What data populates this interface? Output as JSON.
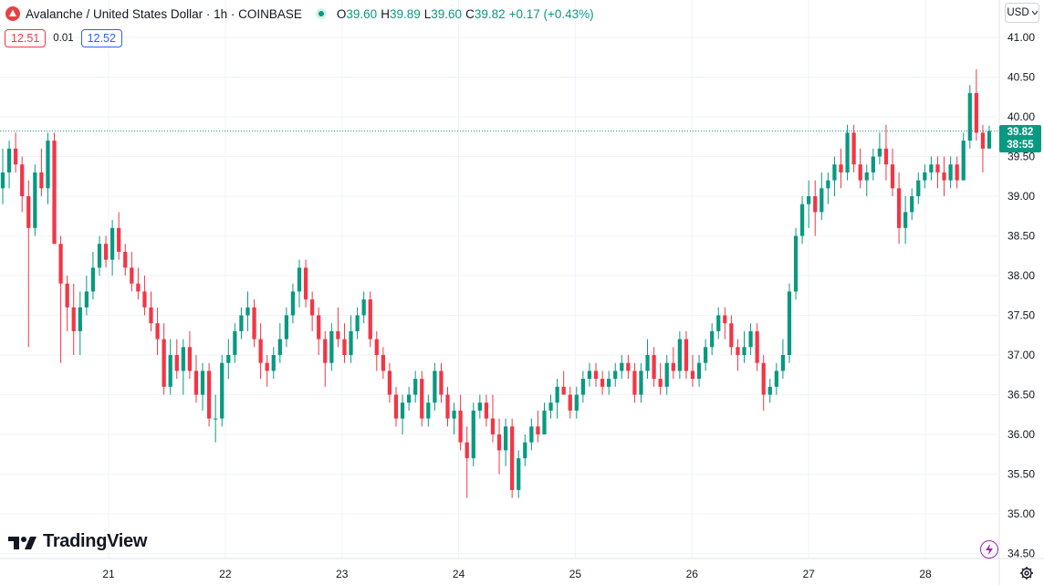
{
  "legend": {
    "symbol_title": "Avalanche / United States Dollar · 1h · COINBASE",
    "o_label": "O",
    "o_value": "39.60",
    "h_label": "H",
    "h_value": "39.89",
    "l_label": "L",
    "l_value": "39.60",
    "c_label": "C",
    "c_value": "39.82",
    "change": "+0.17 (+0.43%)"
  },
  "spread": {
    "sell": "12.51",
    "spread": "0.01",
    "buy": "12.52"
  },
  "currency": {
    "label": "USD"
  },
  "last_price": {
    "price": "39.82",
    "countdown": "38:55"
  },
  "watermark": {
    "brand": "TradingView"
  },
  "icons": {
    "symbol": "avalanche-logo-icon",
    "market_status": "market-open-dot-icon",
    "alerts": "lightning-icon",
    "settings": "gear-icon",
    "dropdown": "chevron-down-icon"
  },
  "colors": {
    "up": "#089981",
    "down": "#f23645",
    "accent": "#2962ff"
  },
  "chart_data": {
    "type": "candlestick",
    "title": "Avalanche / United States Dollar · 1h · COINBASE",
    "ylim": [
      34.35,
      41.22
    ],
    "y_ticks": [
      "41.00",
      "40.50",
      "40.00",
      "39.50",
      "39.00",
      "38.50",
      "38.00",
      "37.50",
      "37.00",
      "36.50",
      "36.00",
      "35.50",
      "35.00",
      "34.50"
    ],
    "x_ticks": [
      "21",
      "22",
      "23",
      "24",
      "25",
      "26",
      "27",
      "28"
    ],
    "last_price": 39.82,
    "grid": true,
    "candles": [
      [
        39.1,
        39.6,
        38.9,
        39.3
      ],
      [
        39.3,
        39.7,
        39.1,
        39.6
      ],
      [
        39.6,
        39.8,
        39.3,
        39.4
      ],
      [
        39.4,
        39.5,
        38.8,
        39.0
      ],
      [
        39.0,
        39.2,
        37.1,
        38.6
      ],
      [
        38.6,
        39.4,
        38.5,
        39.3
      ],
      [
        39.3,
        39.6,
        39.0,
        39.1
      ],
      [
        39.1,
        39.8,
        38.9,
        39.7
      ],
      [
        39.7,
        39.8,
        38.4,
        38.4
      ],
      [
        38.4,
        38.5,
        36.9,
        37.9
      ],
      [
        37.9,
        38.0,
        37.3,
        37.6
      ],
      [
        37.6,
        37.9,
        37.0,
        37.3
      ],
      [
        37.3,
        37.8,
        37.0,
        37.6
      ],
      [
        37.6,
        38.0,
        37.5,
        37.8
      ],
      [
        37.8,
        38.3,
        37.7,
        38.1
      ],
      [
        38.1,
        38.5,
        38.0,
        38.4
      ],
      [
        38.4,
        38.5,
        38.1,
        38.2
      ],
      [
        38.2,
        38.7,
        38.0,
        38.6
      ],
      [
        38.6,
        38.8,
        38.2,
        38.3
      ],
      [
        38.3,
        38.4,
        38.0,
        38.1
      ],
      [
        38.1,
        38.3,
        37.8,
        37.9
      ],
      [
        37.9,
        38.1,
        37.7,
        37.8
      ],
      [
        37.8,
        38.0,
        37.5,
        37.6
      ],
      [
        37.6,
        37.8,
        37.3,
        37.4
      ],
      [
        37.4,
        37.6,
        37.0,
        37.2
      ],
      [
        37.2,
        37.4,
        36.5,
        36.6
      ],
      [
        36.6,
        37.2,
        36.5,
        37.0
      ],
      [
        37.0,
        37.2,
        36.7,
        36.8
      ],
      [
        36.8,
        37.2,
        36.5,
        37.1
      ],
      [
        37.1,
        37.3,
        36.7,
        36.8
      ],
      [
        36.8,
        37.0,
        36.4,
        36.5
      ],
      [
        36.5,
        36.9,
        36.3,
        36.8
      ],
      [
        36.8,
        36.9,
        36.1,
        36.2
      ],
      [
        36.2,
        36.5,
        35.9,
        36.2
      ],
      [
        36.2,
        37.0,
        36.1,
        36.9
      ],
      [
        36.9,
        37.2,
        36.7,
        37.0
      ],
      [
        37.0,
        37.4,
        36.9,
        37.3
      ],
      [
        37.3,
        37.6,
        37.2,
        37.5
      ],
      [
        37.5,
        37.8,
        37.3,
        37.6
      ],
      [
        37.6,
        37.7,
        37.1,
        37.2
      ],
      [
        37.2,
        37.4,
        36.7,
        36.9
      ],
      [
        36.9,
        37.0,
        36.6,
        36.8
      ],
      [
        36.8,
        37.1,
        36.7,
        37.0
      ],
      [
        37.0,
        37.4,
        36.9,
        37.2
      ],
      [
        37.2,
        37.6,
        37.1,
        37.5
      ],
      [
        37.5,
        37.9,
        37.4,
        37.8
      ],
      [
        37.8,
        38.2,
        37.6,
        38.1
      ],
      [
        38.1,
        38.2,
        37.6,
        37.7
      ],
      [
        37.7,
        37.8,
        37.3,
        37.5
      ],
      [
        37.5,
        37.6,
        37.0,
        37.2
      ],
      [
        37.2,
        37.3,
        36.6,
        36.9
      ],
      [
        36.9,
        37.4,
        36.8,
        37.3
      ],
      [
        37.3,
        37.6,
        37.1,
        37.2
      ],
      [
        37.2,
        37.4,
        36.9,
        37.0
      ],
      [
        37.0,
        37.5,
        36.9,
        37.3
      ],
      [
        37.3,
        37.6,
        37.2,
        37.5
      ],
      [
        37.5,
        37.8,
        37.4,
        37.7
      ],
      [
        37.7,
        37.8,
        37.1,
        37.2
      ],
      [
        37.2,
        37.3,
        36.8,
        37.0
      ],
      [
        37.0,
        37.1,
        36.7,
        36.8
      ],
      [
        36.8,
        36.9,
        36.4,
        36.5
      ],
      [
        36.5,
        36.6,
        36.1,
        36.2
      ],
      [
        36.2,
        36.5,
        36.0,
        36.4
      ],
      [
        36.4,
        36.6,
        36.3,
        36.5
      ],
      [
        36.5,
        36.8,
        36.4,
        36.7
      ],
      [
        36.7,
        36.8,
        36.1,
        36.2
      ],
      [
        36.2,
        36.5,
        36.1,
        36.4
      ],
      [
        36.4,
        36.9,
        36.3,
        36.8
      ],
      [
        36.8,
        36.9,
        36.4,
        36.5
      ],
      [
        36.5,
        36.6,
        36.1,
        36.2
      ],
      [
        36.2,
        36.4,
        36.0,
        36.3
      ],
      [
        36.3,
        36.5,
        35.8,
        35.9
      ],
      [
        35.9,
        36.1,
        35.2,
        35.7
      ],
      [
        35.7,
        36.4,
        35.6,
        36.3
      ],
      [
        36.3,
        36.5,
        36.2,
        36.4
      ],
      [
        36.4,
        36.5,
        36.1,
        36.2
      ],
      [
        36.2,
        36.5,
        35.9,
        36.0
      ],
      [
        36.0,
        36.2,
        35.5,
        35.8
      ],
      [
        35.8,
        36.2,
        35.6,
        36.1
      ],
      [
        36.1,
        36.2,
        35.2,
        35.3
      ],
      [
        35.3,
        35.8,
        35.2,
        35.7
      ],
      [
        35.7,
        36.0,
        35.6,
        35.9
      ],
      [
        35.9,
        36.2,
        35.8,
        36.1
      ],
      [
        36.1,
        36.3,
        35.9,
        36.0
      ],
      [
        36.0,
        36.4,
        36.0,
        36.3
      ],
      [
        36.3,
        36.5,
        36.2,
        36.4
      ],
      [
        36.4,
        36.7,
        36.2,
        36.6
      ],
      [
        36.6,
        36.8,
        36.5,
        36.5
      ],
      [
        36.5,
        36.6,
        36.2,
        36.3
      ],
      [
        36.3,
        36.6,
        36.2,
        36.5
      ],
      [
        36.5,
        36.8,
        36.4,
        36.7
      ],
      [
        36.7,
        36.9,
        36.6,
        36.8
      ],
      [
        36.8,
        36.9,
        36.6,
        36.7
      ],
      [
        36.7,
        36.8,
        36.5,
        36.6
      ],
      [
        36.6,
        36.8,
        36.5,
        36.7
      ],
      [
        36.7,
        36.9,
        36.6,
        36.8
      ],
      [
        36.8,
        37.0,
        36.7,
        36.9
      ],
      [
        36.9,
        37.0,
        36.7,
        36.8
      ],
      [
        36.8,
        36.9,
        36.4,
        36.5
      ],
      [
        36.5,
        36.9,
        36.4,
        36.8
      ],
      [
        36.8,
        37.2,
        36.7,
        37.0
      ],
      [
        37.0,
        37.1,
        36.6,
        36.7
      ],
      [
        36.7,
        36.9,
        36.5,
        36.6
      ],
      [
        36.6,
        37.0,
        36.5,
        36.9
      ],
      [
        36.9,
        37.1,
        36.7,
        36.8
      ],
      [
        36.8,
        37.3,
        36.7,
        37.2
      ],
      [
        37.2,
        37.3,
        36.7,
        36.8
      ],
      [
        36.8,
        37.0,
        36.6,
        36.7
      ],
      [
        36.7,
        37.0,
        36.6,
        36.9
      ],
      [
        36.9,
        37.2,
        36.8,
        37.1
      ],
      [
        37.1,
        37.4,
        37.0,
        37.3
      ],
      [
        37.3,
        37.6,
        37.2,
        37.5
      ],
      [
        37.5,
        37.6,
        37.2,
        37.4
      ],
      [
        37.4,
        37.5,
        37.0,
        37.1
      ],
      [
        37.1,
        37.2,
        36.8,
        37.0
      ],
      [
        37.0,
        37.3,
        36.9,
        37.1
      ],
      [
        37.1,
        37.4,
        37.0,
        37.3
      ],
      [
        37.3,
        37.4,
        36.8,
        36.9
      ],
      [
        36.9,
        37.0,
        36.3,
        36.5
      ],
      [
        36.5,
        36.7,
        36.4,
        36.6
      ],
      [
        36.6,
        36.9,
        36.5,
        36.8
      ],
      [
        36.8,
        37.2,
        36.7,
        37.0
      ],
      [
        37.0,
        37.9,
        36.9,
        37.8
      ],
      [
        37.8,
        38.6,
        37.7,
        38.5
      ],
      [
        38.5,
        39.0,
        38.4,
        38.9
      ],
      [
        38.9,
        39.2,
        38.6,
        39.0
      ],
      [
        39.0,
        39.2,
        38.5,
        38.8
      ],
      [
        38.8,
        39.3,
        38.7,
        39.1
      ],
      [
        39.1,
        39.3,
        38.9,
        39.2
      ],
      [
        39.2,
        39.5,
        39.0,
        39.4
      ],
      [
        39.4,
        39.6,
        39.1,
        39.3
      ],
      [
        39.3,
        39.9,
        39.2,
        39.8
      ],
      [
        39.8,
        39.9,
        39.3,
        39.4
      ],
      [
        39.4,
        39.6,
        39.1,
        39.2
      ],
      [
        39.2,
        39.4,
        39.0,
        39.3
      ],
      [
        39.3,
        39.6,
        39.2,
        39.5
      ],
      [
        39.5,
        39.8,
        39.4,
        39.6
      ],
      [
        39.6,
        39.9,
        39.2,
        39.4
      ],
      [
        39.4,
        39.6,
        39.0,
        39.1
      ],
      [
        39.1,
        39.3,
        38.4,
        38.6
      ],
      [
        38.6,
        39.0,
        38.4,
        38.8
      ],
      [
        38.8,
        39.1,
        38.7,
        39.0
      ],
      [
        39.0,
        39.3,
        38.9,
        39.2
      ],
      [
        39.2,
        39.4,
        39.1,
        39.3
      ],
      [
        39.3,
        39.5,
        39.2,
        39.4
      ],
      [
        39.4,
        39.5,
        39.1,
        39.3
      ],
      [
        39.3,
        39.5,
        39.0,
        39.2
      ],
      [
        39.2,
        39.5,
        39.1,
        39.4
      ],
      [
        39.4,
        39.5,
        39.1,
        39.2
      ],
      [
        39.2,
        39.8,
        39.2,
        39.7
      ],
      [
        39.7,
        40.4,
        39.6,
        40.3
      ],
      [
        40.3,
        40.6,
        39.7,
        39.8
      ],
      [
        39.8,
        39.9,
        39.3,
        39.6
      ],
      [
        39.6,
        39.89,
        39.6,
        39.82
      ]
    ]
  }
}
